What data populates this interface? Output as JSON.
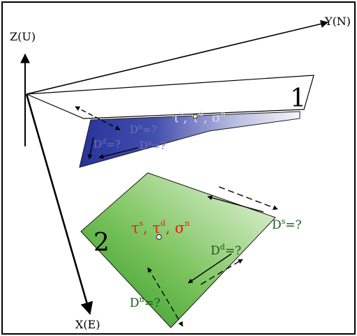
{
  "axes": {
    "z": "Z(U)",
    "y": "Y(N)",
    "x": "X(E)"
  },
  "plane1": {
    "number": "1",
    "stress": "τ",
    "sup_s": "s",
    "sup_d": "d",
    "sigma": "σ",
    "sup_n": "n",
    "dn": "D",
    "dn_sup": "n",
    "dn_val": "=?",
    "dd": "D",
    "dd_sup": "d",
    "dd_val": "=?",
    "ds": "D",
    "ds_sup": "s",
    "ds_val": "=?"
  },
  "plane2": {
    "number": "2",
    "stress": "τ",
    "sup_s": "s",
    "sup_d": "d",
    "sigma": "σ",
    "sup_n": "n",
    "ds": "D",
    "ds_sup": "s",
    "ds_val": "=?",
    "dd": "D",
    "dd_sup": "d",
    "dd_val": "=?",
    "dn": "D",
    "dn_sup": "n",
    "dn_val": "=?"
  },
  "colors": {
    "plane1_dark": "#2b3a9a",
    "plane1_light": "#eeeef6",
    "plane2_dark": "#2f9a22",
    "plane2_light": "#e4f3d8",
    "plane2_text": "#ee1c14",
    "plane2_disp_text": "#165a16",
    "plane1_text": "#d8daf0",
    "plane1_disp_text": "#7074b8"
  }
}
